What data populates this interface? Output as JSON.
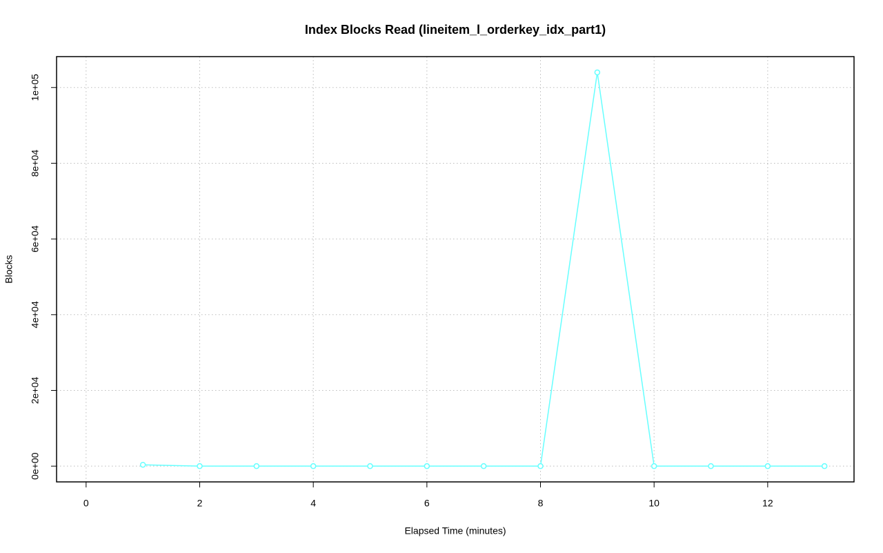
{
  "chart_data": {
    "type": "line",
    "title": "Index Blocks Read (lineitem_l_orderkey_idx_part1)",
    "x_label": "Elapsed Time (minutes)",
    "y_label": "Blocks",
    "x": [
      1,
      2,
      3,
      4,
      5,
      6,
      7,
      8,
      9,
      10,
      11,
      12,
      13
    ],
    "series": [
      {
        "color": "#66ffff",
        "values": [
          360,
          0,
          0,
          0,
          0,
          0,
          0,
          0,
          104000,
          0,
          0,
          0,
          0
        ]
      }
    ],
    "xlim": [
      -0.52,
      13.52
    ],
    "ylim": [
      -4160,
      108160
    ],
    "xticks": [
      0,
      2,
      4,
      6,
      8,
      10,
      12
    ],
    "yticks": [
      {
        "value": 0,
        "label": "0e+00"
      },
      {
        "value": 20000,
        "label": "2e+04"
      },
      {
        "value": 40000,
        "label": "4e+04"
      },
      {
        "value": 60000,
        "label": "6e+04"
      },
      {
        "value": 80000,
        "label": "8e+04"
      },
      {
        "value": 100000,
        "label": "1e+05"
      }
    ],
    "grid": true
  }
}
